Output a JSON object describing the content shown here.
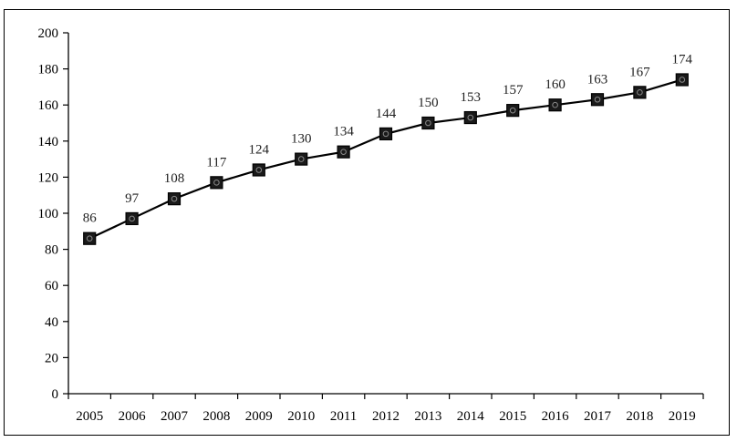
{
  "chart_data": {
    "type": "line",
    "title": "",
    "xlabel": "",
    "ylabel": "",
    "categories": [
      "2005",
      "2006",
      "2007",
      "2008",
      "2009",
      "2010",
      "2011",
      "2012",
      "2013",
      "2014",
      "2015",
      "2016",
      "2017",
      "2018",
      "2019"
    ],
    "series": [
      {
        "values": [
          86,
          97,
          108,
          117,
          124,
          130,
          134,
          144,
          150,
          153,
          157,
          160,
          163,
          167,
          174
        ]
      }
    ],
    "ylim": [
      0,
      200
    ],
    "yticks": [
      0,
      20,
      40,
      60,
      80,
      100,
      120,
      140,
      160,
      180,
      200
    ],
    "data_labels": true,
    "grid": false,
    "legend": "none",
    "marker": "square",
    "line_color": "#000000",
    "marker_color": "#1a1a1a"
  }
}
